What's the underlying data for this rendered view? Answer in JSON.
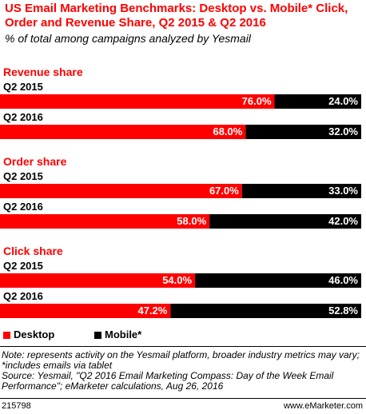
{
  "header": {
    "title": "US Email Marketing Benchmarks: Desktop vs. Mobile* Click, Order and Revenue Share, Q2 2015 & Q2 2016",
    "subtitle": "% of total among campaigns analyzed by Yesmail"
  },
  "chart_data": {
    "type": "bar",
    "orientation": "horizontal",
    "stacked": true,
    "xlim": [
      0,
      100
    ],
    "legend_placement": "bottom",
    "groups": [
      {
        "name": "Revenue share",
        "rows": [
          {
            "label": "Q2 2015",
            "desktop": 76.0,
            "mobile": 24.0,
            "desktop_label": "76.0%",
            "mobile_label": "24.0%"
          },
          {
            "label": "Q2 2016",
            "desktop": 68.0,
            "mobile": 32.0,
            "desktop_label": "68.0%",
            "mobile_label": "32.0%"
          }
        ]
      },
      {
        "name": "Order share",
        "rows": [
          {
            "label": "Q2 2015",
            "desktop": 67.0,
            "mobile": 33.0,
            "desktop_label": "67.0%",
            "mobile_label": "33.0%"
          },
          {
            "label": "Q2 2016",
            "desktop": 58.0,
            "mobile": 42.0,
            "desktop_label": "58.0%",
            "mobile_label": "42.0%"
          }
        ]
      },
      {
        "name": "Click share",
        "rows": [
          {
            "label": "Q2 2015",
            "desktop": 54.0,
            "mobile": 46.0,
            "desktop_label": "54.0%",
            "mobile_label": "46.0%"
          },
          {
            "label": "Q2 2016",
            "desktop": 47.2,
            "mobile": 52.8,
            "desktop_label": "47.2%",
            "mobile_label": "52.8%"
          }
        ]
      }
    ],
    "series": [
      {
        "name": "Desktop",
        "color": "#ff0000"
      },
      {
        "name": "Mobile*",
        "color": "#000000"
      }
    ]
  },
  "legend": {
    "desktop_label": "Desktop",
    "mobile_label": "Mobile*"
  },
  "notes": {
    "text": "Note: represents activity on the Yesmail platform, broader industry metrics may vary; *includes emails via tablet\nSource: Yesmail, \"Q2 2016 Email Marketing Compass: Day of the Week Email Performance\"; eMarketer calculations, Aug 26, 2016"
  },
  "footer": {
    "chart_id": "215798",
    "site": "www.eMarketer.com"
  },
  "colors": {
    "title": "#ff0000",
    "group_label": "#ff0000",
    "desktop": "#ff0000",
    "mobile": "#000000"
  }
}
